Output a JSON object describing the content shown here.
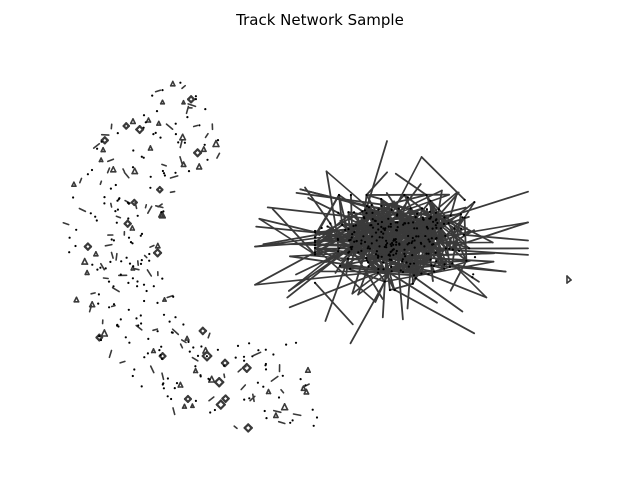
{
  "figure": {
    "title": "Track Network Sample"
  },
  "colors": {
    "background": "#ffffff",
    "edge": "#3a3a3a",
    "node": "#000000"
  }
}
